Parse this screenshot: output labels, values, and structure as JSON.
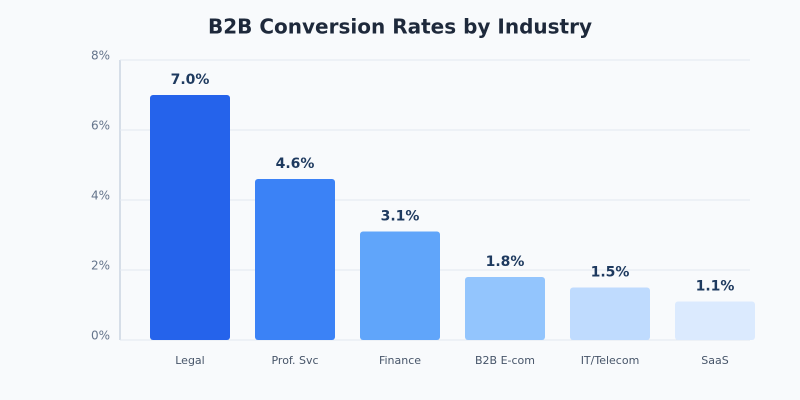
{
  "chart_data": {
    "type": "bar",
    "title": "B2B Conversion Rates by Industry",
    "categories": [
      "Legal",
      "Prof. Svc",
      "Finance",
      "B2B E-com",
      "IT/Telecom",
      "SaaS"
    ],
    "values": [
      7.0,
      4.6,
      3.1,
      1.8,
      1.5,
      1.1
    ],
    "value_labels": [
      "7.0%",
      "4.6%",
      "3.1%",
      "1.8%",
      "1.5%",
      "1.1%"
    ],
    "colors": [
      "#2563eb",
      "#3b82f6",
      "#60a5fa",
      "#93c5fd",
      "#bfdbfe",
      "#dbeafe"
    ],
    "ylim": [
      0,
      8
    ],
    "yticks": [
      {
        "value": 0,
        "label": "0%"
      },
      {
        "value": 2,
        "label": "2%"
      },
      {
        "value": 4,
        "label": "4%"
      },
      {
        "value": 6,
        "label": "6%"
      },
      {
        "value": 8,
        "label": "8%"
      }
    ],
    "grid": true
  }
}
